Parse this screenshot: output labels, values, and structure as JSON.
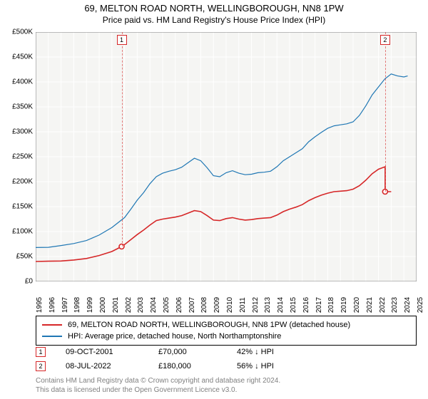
{
  "title_line1": "69, MELTON ROAD NORTH, WELLINGBOROUGH, NN8 1PW",
  "title_line2": "Price paid vs. HM Land Registry's House Price Index (HPI)",
  "chart": {
    "type": "line",
    "background_color": "#f5f5f3",
    "plot_bg": "#f5f5f3",
    "grid_color": "#ffffff",
    "axis_color": "#808080",
    "ylim": [
      0,
      500000
    ],
    "ytick_step": 50000,
    "ytick_labels": [
      "£0",
      "£50K",
      "£100K",
      "£150K",
      "£200K",
      "£250K",
      "£300K",
      "£350K",
      "£400K",
      "£450K",
      "£500K"
    ],
    "xlim": [
      1995,
      2025
    ],
    "xtick_step": 1,
    "xtick_labels": [
      "1995",
      "1996",
      "1997",
      "1998",
      "1999",
      "2000",
      "2001",
      "2002",
      "2003",
      "2004",
      "2005",
      "2006",
      "2007",
      "2008",
      "2009",
      "2010",
      "2011",
      "2012",
      "2013",
      "2014",
      "2015",
      "2016",
      "2017",
      "2018",
      "2019",
      "2020",
      "2021",
      "2022",
      "2023",
      "2024",
      "2025"
    ],
    "series": [
      {
        "name": "property",
        "label": "69, MELTON ROAD NORTH, WELLINGBOROUGH, NN8 1PW (detached house)",
        "color": "#d62728",
        "line_width": 1.6,
        "data": [
          [
            1995.0,
            40000
          ],
          [
            1996.0,
            40500
          ],
          [
            1997.0,
            41000
          ],
          [
            1998.0,
            43000
          ],
          [
            1999.0,
            46000
          ],
          [
            2000.0,
            52000
          ],
          [
            2001.0,
            60000
          ],
          [
            2001.77,
            70000
          ],
          [
            2002.0,
            74000
          ],
          [
            2002.5,
            84000
          ],
          [
            2003.0,
            94000
          ],
          [
            2003.5,
            103000
          ],
          [
            2004.0,
            113000
          ],
          [
            2004.5,
            122000
          ],
          [
            2005.0,
            125000
          ],
          [
            2005.5,
            127000
          ],
          [
            2006.0,
            129000
          ],
          [
            2006.5,
            132000
          ],
          [
            2007.0,
            137000
          ],
          [
            2007.5,
            142000
          ],
          [
            2008.0,
            140000
          ],
          [
            2008.5,
            132000
          ],
          [
            2009.0,
            123000
          ],
          [
            2009.5,
            122000
          ],
          [
            2010.0,
            126000
          ],
          [
            2010.5,
            128000
          ],
          [
            2011.0,
            125000
          ],
          [
            2011.5,
            123000
          ],
          [
            2012.0,
            124000
          ],
          [
            2012.5,
            126000
          ],
          [
            2013.0,
            127000
          ],
          [
            2013.5,
            128000
          ],
          [
            2014.0,
            133000
          ],
          [
            2014.5,
            140000
          ],
          [
            2015.0,
            145000
          ],
          [
            2015.5,
            149000
          ],
          [
            2016.0,
            154000
          ],
          [
            2016.5,
            162000
          ],
          [
            2017.0,
            168000
          ],
          [
            2017.5,
            173000
          ],
          [
            2018.0,
            177000
          ],
          [
            2018.5,
            180000
          ],
          [
            2019.0,
            181000
          ],
          [
            2019.5,
            182000
          ],
          [
            2020.0,
            185000
          ],
          [
            2020.5,
            192000
          ],
          [
            2021.0,
            203000
          ],
          [
            2021.5,
            216000
          ],
          [
            2022.0,
            225000
          ],
          [
            2022.52,
            230000
          ],
          [
            2022.52,
            180000
          ],
          [
            2023.0,
            180000
          ]
        ]
      },
      {
        "name": "hpi",
        "label": "HPI: Average price, detached house, North Northamptonshire",
        "color": "#1f77b4",
        "line_width": 1.2,
        "data": [
          [
            1995.0,
            68000
          ],
          [
            1996.0,
            68500
          ],
          [
            1997.0,
            72000
          ],
          [
            1998.0,
            76000
          ],
          [
            1999.0,
            82000
          ],
          [
            2000.0,
            93000
          ],
          [
            2001.0,
            108000
          ],
          [
            2002.0,
            128000
          ],
          [
            2002.5,
            145000
          ],
          [
            2003.0,
            163000
          ],
          [
            2003.5,
            178000
          ],
          [
            2004.0,
            196000
          ],
          [
            2004.5,
            210000
          ],
          [
            2005.0,
            217000
          ],
          [
            2005.5,
            221000
          ],
          [
            2006.0,
            224000
          ],
          [
            2006.5,
            229000
          ],
          [
            2007.0,
            238000
          ],
          [
            2007.5,
            247000
          ],
          [
            2008.0,
            242000
          ],
          [
            2008.5,
            228000
          ],
          [
            2009.0,
            212000
          ],
          [
            2009.5,
            210000
          ],
          [
            2010.0,
            218000
          ],
          [
            2010.5,
            222000
          ],
          [
            2011.0,
            217000
          ],
          [
            2011.5,
            214000
          ],
          [
            2012.0,
            215000
          ],
          [
            2012.5,
            218000
          ],
          [
            2013.0,
            219000
          ],
          [
            2013.5,
            221000
          ],
          [
            2014.0,
            230000
          ],
          [
            2014.5,
            242000
          ],
          [
            2015.0,
            250000
          ],
          [
            2015.5,
            258000
          ],
          [
            2016.0,
            266000
          ],
          [
            2016.5,
            280000
          ],
          [
            2017.0,
            290000
          ],
          [
            2017.5,
            299000
          ],
          [
            2018.0,
            307000
          ],
          [
            2018.5,
            312000
          ],
          [
            2019.0,
            314000
          ],
          [
            2019.5,
            316000
          ],
          [
            2020.0,
            320000
          ],
          [
            2020.5,
            333000
          ],
          [
            2021.0,
            352000
          ],
          [
            2021.5,
            374000
          ],
          [
            2022.0,
            390000
          ],
          [
            2022.5,
            406000
          ],
          [
            2023.0,
            416000
          ],
          [
            2023.5,
            412000
          ],
          [
            2024.0,
            410000
          ],
          [
            2024.3,
            412000
          ]
        ]
      }
    ],
    "markers": [
      {
        "id": "1",
        "x": 2001.77,
        "y": 70000,
        "color": "#d62728"
      },
      {
        "id": "2",
        "x": 2022.52,
        "y": 180000,
        "color": "#d62728"
      }
    ]
  },
  "legend": [
    {
      "color": "#d62728",
      "label": "69, MELTON ROAD NORTH, WELLINGBOROUGH, NN8 1PW (detached house)"
    },
    {
      "color": "#1f77b4",
      "label": "HPI: Average price, detached house, North Northamptonshire"
    }
  ],
  "transactions": [
    {
      "id": "1",
      "color": "#d62728",
      "date": "09-OCT-2001",
      "price": "£70,000",
      "pct": "42% ↓ HPI"
    },
    {
      "id": "2",
      "color": "#d62728",
      "date": "08-JUL-2022",
      "price": "£180,000",
      "pct": "56% ↓ HPI"
    }
  ],
  "footer_line1": "Contains HM Land Registry data © Crown copyright and database right 2024.",
  "footer_line2": "This data is licensed under the Open Government Licence v3.0.",
  "label_fontsize": 10,
  "title_fontsize": 13
}
